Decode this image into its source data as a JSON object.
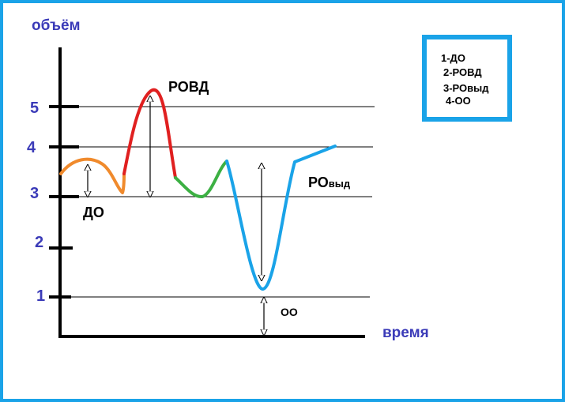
{
  "diagram": {
    "y_axis_title": "объём",
    "x_axis_title": "время",
    "y_ticks": [
      "1",
      "2",
      "3",
      "4",
      "5"
    ],
    "labels": {
      "rovd": "РОВД",
      "do": "ДО",
      "ro": "РО",
      "ro_sub": "выд",
      "oo": "ОО"
    },
    "segment_colors": {
      "do": "#f08a2c",
      "rovd": "#e02020",
      "middle": "#3cb043",
      "rovyd": "#1aa3e8"
    },
    "legend": [
      "1-ДО",
      "2-РОВД",
      "3-РОвыд",
      "4-ОО"
    ]
  }
}
